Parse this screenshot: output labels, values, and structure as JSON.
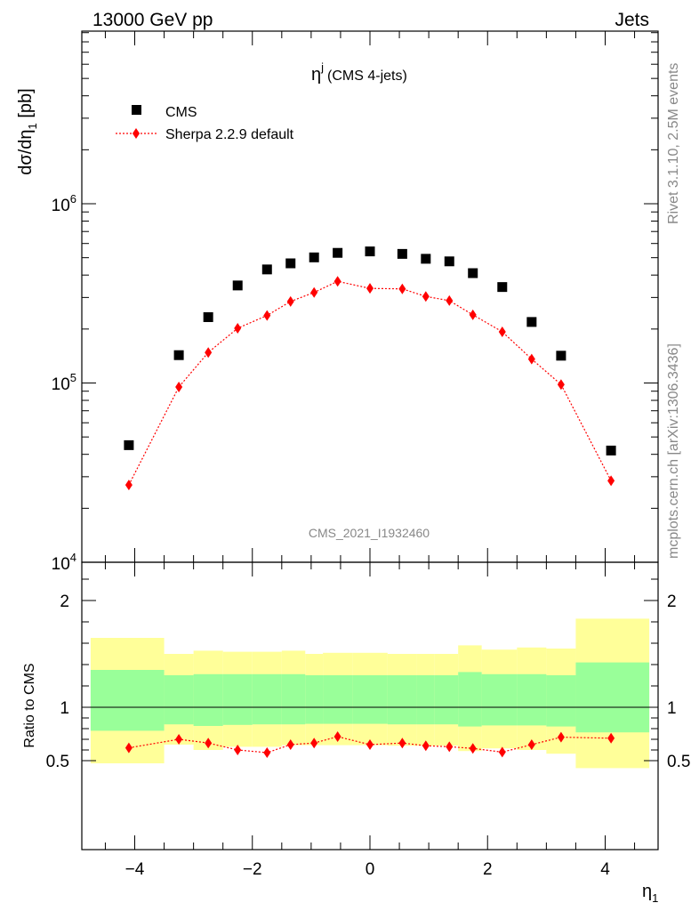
{
  "header": {
    "left": "13000 GeV pp",
    "right": "Jets"
  },
  "side_labels": {
    "rivet": "Rivet 3.1.10,  2.5M events",
    "mcplots": "mcplots.cern.ch [arXiv:1306.3436]"
  },
  "watermark": "CMS_2021_I1932460",
  "plot_title": {
    "main": "η",
    "sup": "j",
    "paren": "(CMS 4-jets)"
  },
  "legend": [
    {
      "label": "CMS",
      "marker": "square",
      "color": "#000000"
    },
    {
      "label": "Sherpa 2.2.9 default",
      "marker": "diamond",
      "color": "#ff0000"
    }
  ],
  "axes": {
    "ylabel_main": {
      "base": "dσ/dη",
      "sub": "1",
      "unit": " [pb]"
    },
    "ylabel_ratio": "Ratio to CMS",
    "xlabel": {
      "base": "η",
      "sub": "1"
    },
    "xticks": [
      -4,
      -2,
      0,
      2,
      4
    ],
    "xtick_labels": [
      "−4",
      "−2",
      "0",
      "2",
      "4"
    ],
    "ratio_ticks": [
      0.5,
      1,
      2
    ],
    "ratio_tick_labels": [
      "0.5",
      "1",
      "2"
    ],
    "main_ticks": [
      10000,
      100000,
      1000000
    ],
    "main_tick_labels": [
      {
        "base": "10",
        "exp": "4"
      },
      {
        "base": "10",
        "exp": "5"
      },
      {
        "base": "10",
        "exp": "6"
      }
    ]
  },
  "chart_data": {
    "type": "scatter",
    "xlim": [
      -4.9,
      4.9
    ],
    "ylim_main": [
      10000,
      10000000
    ],
    "ylim_ratio": [
      0.4,
      2.3
    ],
    "yscale": "log",
    "x": [
      -4.1,
      -3.25,
      -2.75,
      -2.25,
      -1.75,
      -1.35,
      -0.95,
      -0.55,
      0.0,
      0.55,
      0.95,
      1.35,
      1.75,
      2.25,
      2.75,
      3.25,
      4.1
    ],
    "series": [
      {
        "name": "CMS",
        "color": "#000000",
        "values": [
          45000,
          143000,
          233000,
          350000,
          430000,
          465000,
          502000,
          532000,
          542000,
          525000,
          493000,
          477000,
          410000,
          343000,
          219000,
          142000,
          42000
        ]
      },
      {
        "name": "Sherpa 2.2.9 default",
        "color": "#ff0000",
        "values": [
          27000,
          95000,
          148000,
          202000,
          238000,
          285000,
          320000,
          369000,
          337000,
          335000,
          304000,
          288000,
          240000,
          193000,
          136000,
          98000,
          28500
        ]
      }
    ],
    "ratio": {
      "values": [
        0.62,
        0.7,
        0.665,
        0.6,
        0.575,
        0.65,
        0.665,
        0.725,
        0.65,
        0.665,
        0.64,
        0.63,
        0.615,
        0.58,
        0.65,
        0.72,
        0.71
      ],
      "errors": [
        0.03,
        0.025,
        0.02,
        0.015,
        0.015,
        0.015,
        0.015,
        0.015,
        0.015,
        0.015,
        0.015,
        0.015,
        0.02,
        0.015,
        0.02,
        0.025,
        0.03
      ]
    },
    "bands": [
      {
        "x0": -4.75,
        "x1": -3.5,
        "green": [
          0.78,
          1.35
        ],
        "yellow": [
          0.475,
          1.65
        ]
      },
      {
        "x0": -3.5,
        "x1": -3.0,
        "green": [
          0.84,
          1.3
        ],
        "yellow": [
          0.65,
          1.5
        ]
      },
      {
        "x0": -3.0,
        "x1": -2.5,
        "green": [
          0.825,
          1.31
        ],
        "yellow": [
          0.6,
          1.53
        ]
      },
      {
        "x0": -2.5,
        "x1": -2.0,
        "green": [
          0.835,
          1.31
        ],
        "yellow": [
          0.63,
          1.52
        ]
      },
      {
        "x0": -2.0,
        "x1": -1.5,
        "green": [
          0.84,
          1.31
        ],
        "yellow": [
          0.63,
          1.52
        ]
      },
      {
        "x0": -1.5,
        "x1": -1.1,
        "green": [
          0.84,
          1.31
        ],
        "yellow": [
          0.645,
          1.53
        ]
      },
      {
        "x0": -1.1,
        "x1": -0.8,
        "green": [
          0.845,
          1.3
        ],
        "yellow": [
          0.645,
          1.5
        ]
      },
      {
        "x0": -0.8,
        "x1": -0.3,
        "green": [
          0.845,
          1.3
        ],
        "yellow": [
          0.645,
          1.51
        ]
      },
      {
        "x0": -0.3,
        "x1": 0.3,
        "green": [
          0.845,
          1.3
        ],
        "yellow": [
          0.645,
          1.51
        ]
      },
      {
        "x0": 0.3,
        "x1": 0.8,
        "green": [
          0.84,
          1.3
        ],
        "yellow": [
          0.64,
          1.5
        ]
      },
      {
        "x0": 0.8,
        "x1": 1.1,
        "green": [
          0.84,
          1.3
        ],
        "yellow": [
          0.64,
          1.5
        ]
      },
      {
        "x0": 1.1,
        "x1": 1.5,
        "green": [
          0.84,
          1.3
        ],
        "yellow": [
          0.64,
          1.5
        ]
      },
      {
        "x0": 1.5,
        "x1": 1.9,
        "green": [
          0.82,
          1.33
        ],
        "yellow": [
          0.59,
          1.58
        ]
      },
      {
        "x0": 1.9,
        "x1": 2.5,
        "green": [
          0.83,
          1.31
        ],
        "yellow": [
          0.615,
          1.54
        ]
      },
      {
        "x0": 2.5,
        "x1": 3.0,
        "green": [
          0.83,
          1.31
        ],
        "yellow": [
          0.6,
          1.56
        ]
      },
      {
        "x0": 3.0,
        "x1": 3.5,
        "green": [
          0.82,
          1.3
        ],
        "yellow": [
          0.565,
          1.55
        ]
      },
      {
        "x0": 3.5,
        "x1": 4.75,
        "green": [
          0.765,
          1.42
        ],
        "yellow": [
          0.43,
          1.83
        ]
      }
    ]
  }
}
